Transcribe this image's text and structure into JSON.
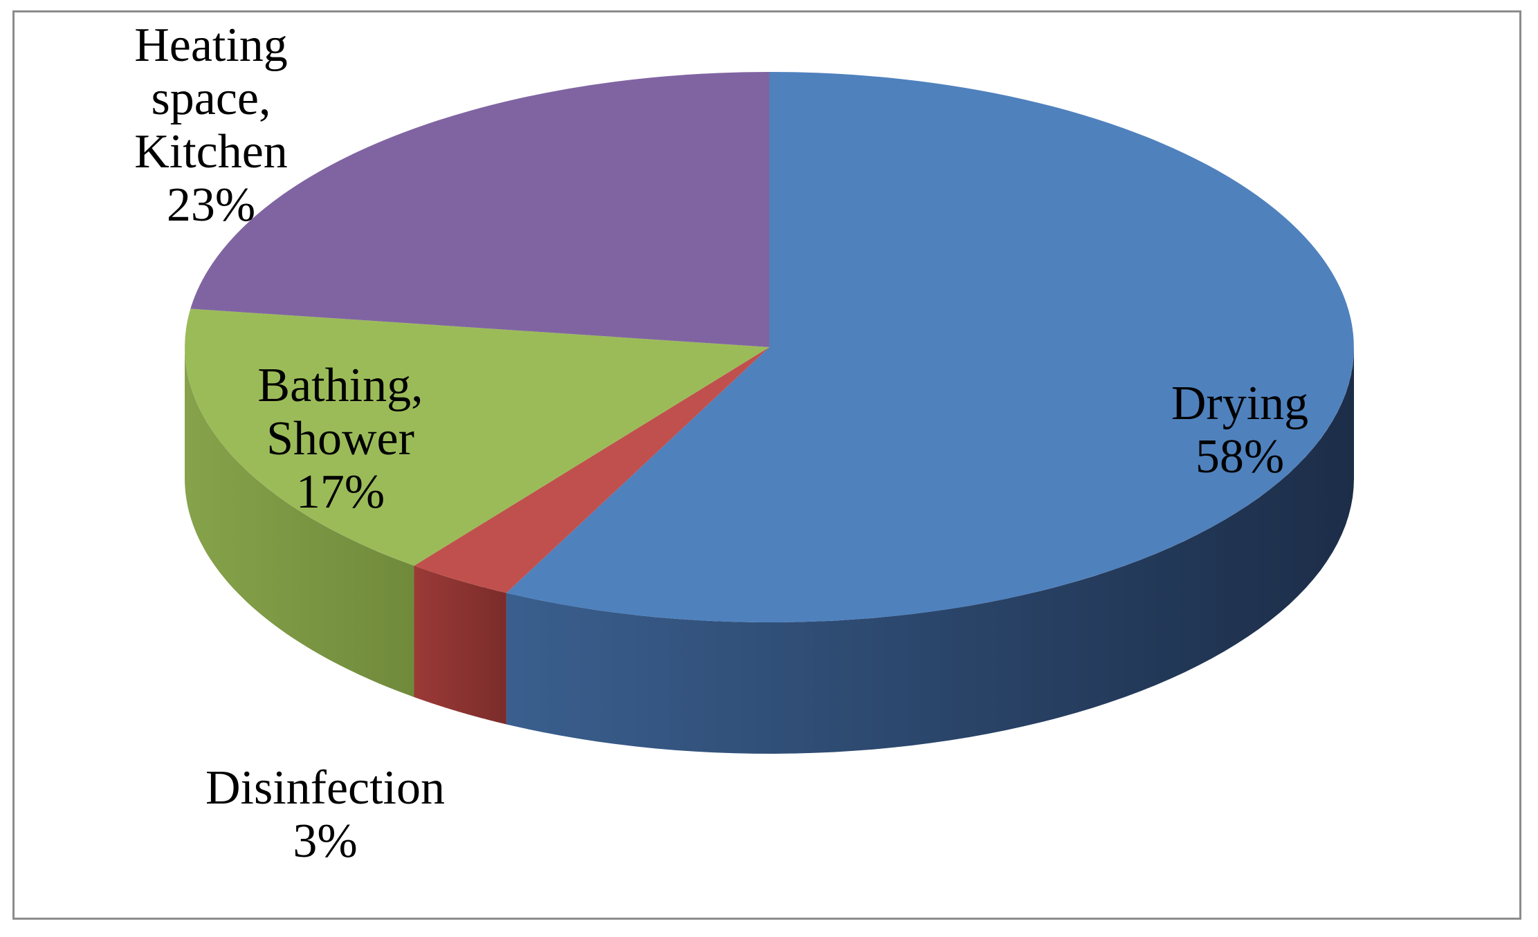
{
  "chart_data": {
    "type": "pie",
    "style": "3d",
    "title": "",
    "slices": [
      {
        "label_lines": [
          "Drying"
        ],
        "value": 58,
        "value_label": "58%",
        "color": "#4f81bd"
      },
      {
        "label_lines": [
          "Disinfection"
        ],
        "value": 3,
        "value_label": "3%",
        "color": "#c0504d"
      },
      {
        "label_lines": [
          "Bathing,",
          "Shower"
        ],
        "value": 17,
        "value_label": "17%",
        "color": "#9bbb59"
      },
      {
        "label_lines": [
          "Heating",
          "space,",
          "Kitchen"
        ],
        "value": 23,
        "value_label": "23%",
        "color": "#8064a2"
      }
    ],
    "start_angle": "12 o'clock",
    "direction": "clockwise",
    "legend": "none",
    "data_labels": "category name and percentage"
  }
}
